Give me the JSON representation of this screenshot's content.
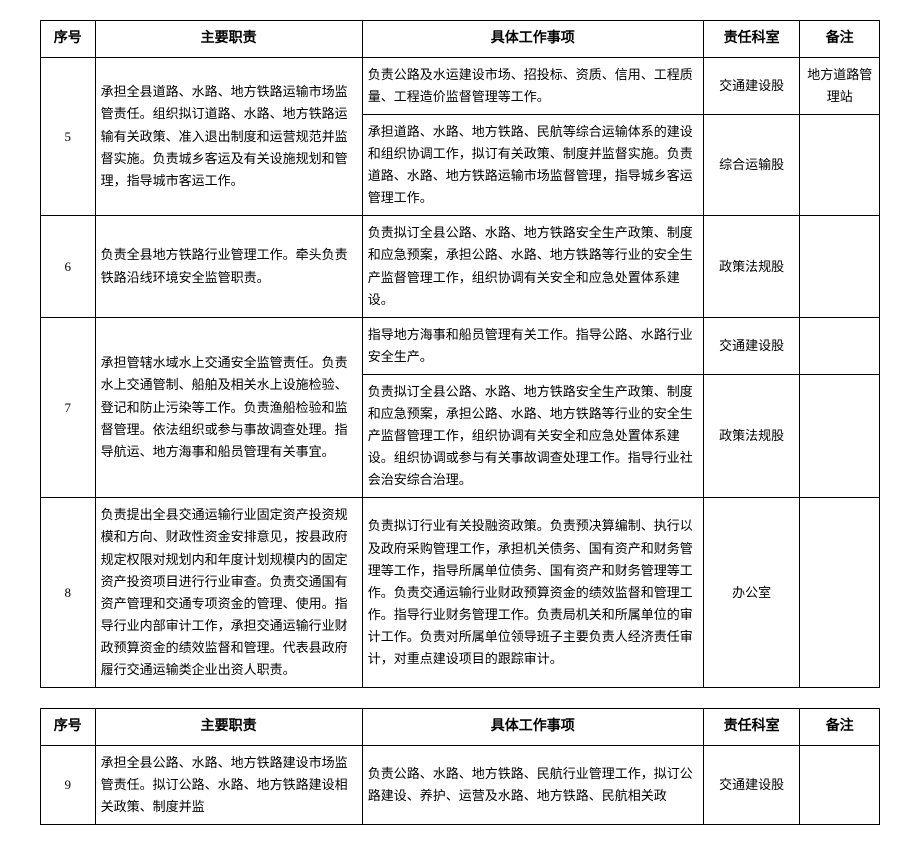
{
  "headers": {
    "seq": "序号",
    "duty": "主要职责",
    "item": "具体工作事项",
    "dept": "责任科室",
    "remark": "备注"
  },
  "rows": [
    {
      "seq": "5",
      "duty": "承担全县道路、水路、地方铁路运输市场监管责任。组织拟订道路、水路、地方铁路运输有关政策、准入退出制度和运营规范并监督实施。负责城乡客运及有关设施规划和管理，指导城市客运工作。",
      "items": [
        {
          "text": "负责公路及水运建设市场、招投标、资质、信用、工程质量、工程造价监督管理等工作。",
          "dept": "交通建设股",
          "remark": "地方道路管理站"
        },
        {
          "text": "承担道路、水路、地方铁路、民航等综合运输体系的建设和组织协调工作，拟订有关政策、制度并监督实施。负责道路、水路、地方铁路运输市场监督管理，指导城乡客运管理工作。",
          "dept": "综合运输股",
          "remark": ""
        }
      ]
    },
    {
      "seq": "6",
      "duty": "负责全县地方铁路行业管理工作。牵头负责铁路沿线环境安全监管职责。",
      "items": [
        {
          "text": "负责拟订全县公路、水路、地方铁路安全生产政策、制度和应急预案，承担公路、水路、地方铁路等行业的安全生产监督管理工作，组织协调有关安全和应急处置体系建设。",
          "dept": "政策法规股",
          "remark": ""
        }
      ]
    },
    {
      "seq": "7",
      "duty": "承担管辖水域水上交通安全监管责任。负责水上交通管制、船舶及相关水上设施检验、登记和防止污染等工作。负责渔船检验和监督管理。依法组织或参与事故调查处理。指导航运、地方海事和船员管理有关事宜。",
      "items": [
        {
          "text": "指导地方海事和船员管理有关工作。指导公路、水路行业安全生产。",
          "dept": "交通建设股",
          "remark": ""
        },
        {
          "text": "负责拟订全县公路、水路、地方铁路安全生产政策、制度和应急预案，承担公路、水路、地方铁路等行业的安全生产监督管理工作，组织协调有关安全和应急处置体系建设。组织协调或参与有关事故调查处理工作。指导行业社会治安综合治理。",
          "dept": "政策法规股",
          "remark": ""
        }
      ]
    },
    {
      "seq": "8",
      "duty": "负责提出全县交通运输行业固定资产投资规模和方向、财政性资金安排意见，按县政府规定权限对规划内和年度计划规模内的固定资产投资项目进行行业审查。负责交通国有资产管理和交通专项资金的管理、使用。指导行业内部审计工作，承担交通运输行业财政预算资金的绩效监督和管理。代表县政府履行交通运输类企业出资人职责。",
      "items": [
        {
          "text": "负责拟订行业有关投融资政策。负责预决算编制、执行以及政府采购管理工作，承担机关债务、国有资产和财务管理等工作，指导所属单位债务、国有资产和财务管理等工作。负责交通运输行业财政预算资金的绩效监督和管理工作。指导行业财务管理工作。负责局机关和所属单位的审计工作。负责对所属单位领导班子主要负责人经济责任审计，对重点建设项目的跟踪审计。",
          "dept": "办公室",
          "remark": ""
        }
      ]
    }
  ],
  "rows2": [
    {
      "seq": "9",
      "duty": "承担全县公路、水路、地方铁路建设市场监管责任。拟订公路、水路、地方铁路建设相关政策、制度并监",
      "items": [
        {
          "text": "负责公路、水路、地方铁路、民航行业管理工作，拟订公路建设、养护、运营及水路、地方铁路、民航相关政",
          "dept": "交通建设股",
          "remark": ""
        }
      ]
    }
  ]
}
